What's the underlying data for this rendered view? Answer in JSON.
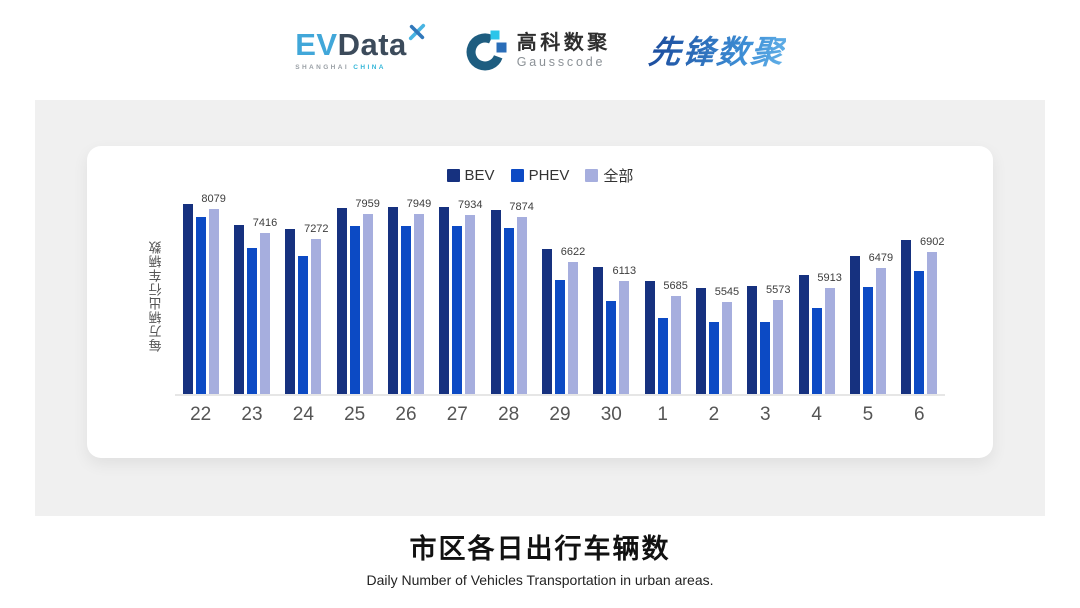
{
  "header": {
    "evdata": {
      "ev": "EV",
      "data": "Data",
      "sub_left": "SHANGHAI",
      "sub_right": "CHINA"
    },
    "gausscode": {
      "cn": "高科数聚",
      "en": "Gausscode"
    },
    "pioneer": "先锋数聚"
  },
  "chart_data": {
    "type": "bar",
    "title": "市区各日出行车辆数",
    "subtitle": "Daily Number of Vehicles Transportation in urban areas.",
    "ylabel": "每万辆出行车辆数",
    "xlabel": "",
    "ylim": [
      3000,
      8500
    ],
    "grid": false,
    "legend_position": "top-center",
    "categories": [
      "22",
      "23",
      "24",
      "25",
      "26",
      "27",
      "28",
      "29",
      "30",
      "1",
      "2",
      "3",
      "4",
      "5",
      "6"
    ],
    "series": [
      {
        "name": "BEV",
        "color": "#16317f",
        "show_labels": false,
        "estimated": true,
        "values": [
          8240,
          7660,
          7550,
          8130,
          8140,
          8140,
          8060,
          6980,
          6500,
          6100,
          5930,
          5960,
          6270,
          6810,
          7240
        ]
      },
      {
        "name": "PHEV",
        "color": "#0c4ac4",
        "show_labels": false,
        "estimated": true,
        "values": [
          7860,
          7010,
          6790,
          7630,
          7630,
          7610,
          7570,
          6130,
          5560,
          5080,
          4990,
          4970,
          5360,
          5940,
          6380
        ]
      },
      {
        "name": "全部",
        "color": "#a6aede",
        "show_labels": true,
        "estimated": false,
        "values": [
          8079,
          7416,
          7272,
          7959,
          7949,
          7934,
          7874,
          6622,
          6113,
          5685,
          5545,
          5573,
          5913,
          6479,
          6902
        ]
      }
    ]
  },
  "footer": {
    "title": "市区各日出行车辆数",
    "subtitle": "Daily Number of Vehicles Transportation in urban areas."
  },
  "colors": {
    "panel_bg": "#f0f0f0",
    "card_bg": "#ffffff",
    "axis_line": "#e6e6e6",
    "bev": "#16317f",
    "phev": "#0c4ac4",
    "all": "#a6aede"
  }
}
